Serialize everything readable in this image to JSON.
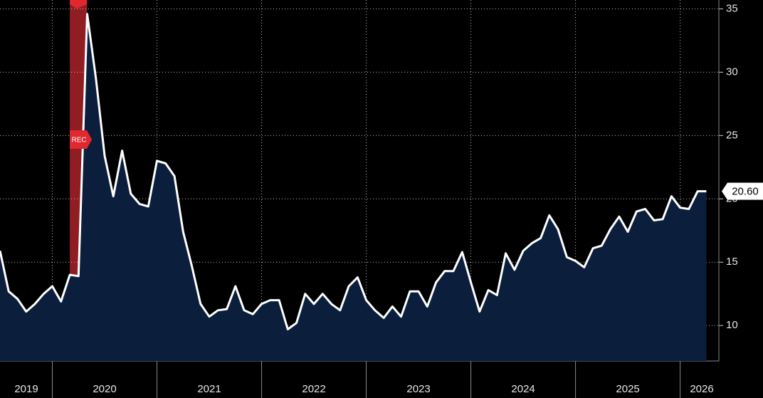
{
  "chart_data": {
    "type": "area-line",
    "x": [
      2019.5,
      2019.583,
      2019.667,
      2019.75,
      2019.833,
      2019.917,
      2020,
      2020.083,
      2020.167,
      2020.25,
      2020.333,
      2020.417,
      2020.5,
      2020.583,
      2020.667,
      2020.75,
      2020.833,
      2020.917,
      2021,
      2021.083,
      2021.167,
      2021.25,
      2021.333,
      2021.417,
      2021.5,
      2021.583,
      2021.667,
      2021.75,
      2021.833,
      2021.917,
      2022,
      2022.083,
      2022.167,
      2022.25,
      2022.333,
      2022.417,
      2022.5,
      2022.583,
      2022.667,
      2022.75,
      2022.833,
      2022.917,
      2023,
      2023.083,
      2023.167,
      2023.25,
      2023.333,
      2023.417,
      2023.5,
      2023.583,
      2023.667,
      2023.75,
      2023.833,
      2023.917,
      2024,
      2024.083,
      2024.167,
      2024.25,
      2024.333,
      2024.417,
      2024.5,
      2024.583,
      2024.667,
      2024.75,
      2024.833,
      2024.917,
      2025,
      2025.083,
      2025.167,
      2025.25,
      2025.333,
      2025.417,
      2025.5,
      2025.583,
      2025.667,
      2025.75,
      2025.833,
      2025.917,
      2026,
      2026.083,
      2026.167,
      2026.25
    ],
    "values": [
      15.9,
      12.7,
      12.1,
      11.1,
      11.7,
      12.5,
      13.1,
      11.9,
      14.0,
      13.9,
      34.6,
      29.5,
      23.4,
      20.2,
      23.8,
      20.4,
      19.6,
      19.4,
      23.0,
      22.8,
      21.8,
      17.4,
      14.7,
      11.7,
      10.7,
      11.2,
      11.3,
      13.1,
      11.2,
      10.9,
      11.7,
      12.0,
      12.0,
      9.7,
      10.2,
      12.5,
      11.7,
      12.5,
      11.7,
      11.2,
      13.1,
      13.8,
      12.0,
      11.2,
      10.6,
      11.5,
      10.7,
      12.7,
      12.7,
      11.5,
      13.4,
      14.3,
      14.3,
      15.8,
      13.4,
      11.1,
      12.8,
      12.4,
      15.7,
      14.4,
      15.9,
      16.5,
      16.9,
      18.7,
      17.6,
      15.4,
      15.1,
      14.6,
      16.1,
      16.3,
      17.6,
      18.6,
      17.4,
      19.0,
      19.2,
      18.3,
      18.4,
      20.2,
      19.3,
      19.2,
      20.6,
      20.6
    ],
    "last_value_label": "20.60",
    "line_color": "#ffffff",
    "area_color": "#0b1f3d",
    "recession": {
      "label": "REC",
      "start": 2020.167,
      "end": 2020.333,
      "color": "#c0272d"
    },
    "xlim": [
      2019.5,
      2026.37
    ],
    "xticks": [
      2019,
      2020,
      2021,
      2022,
      2023,
      2024,
      2025,
      2026
    ],
    "ylim": [
      7.2,
      35.7
    ],
    "yticks": [
      10,
      15,
      20,
      25,
      30,
      35
    ],
    "grid": true
  }
}
